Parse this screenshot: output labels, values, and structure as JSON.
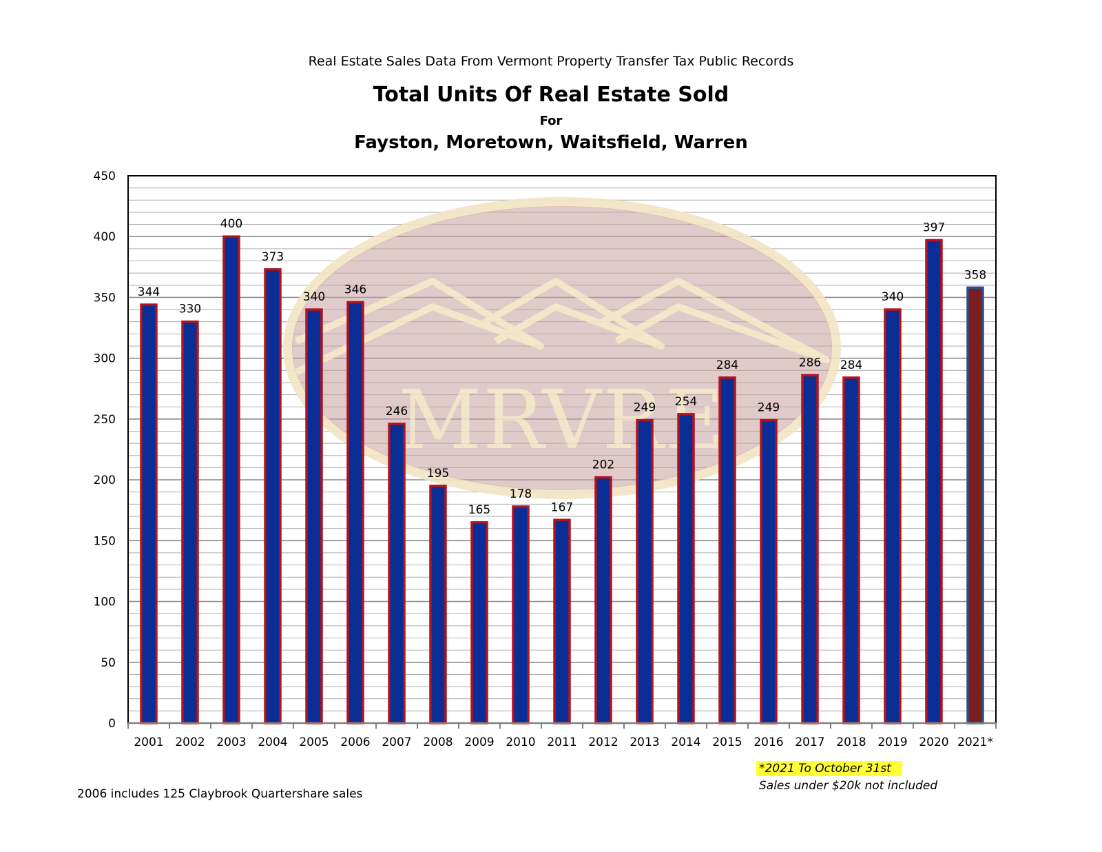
{
  "header": {
    "subtitle": "Real Estate Sales Data From Vermont Property Transfer Tax Public Records",
    "title": "Total Units Of Real Estate Sold",
    "title_for": "For",
    "title_towns": "Fayston, Moretown, Waitsfield, Warren"
  },
  "watermark": {
    "text": "MRVRE"
  },
  "notes": {
    "left": "2006 includes 125 Claybrook Quartershare sales",
    "highlight": "*2021 To October 31st",
    "sales": "Sales under $20k not included"
  },
  "colors": {
    "bar_fill": "#0a2e96",
    "bar_border": "#b0141e",
    "last_bar_fill": "#7a1f1f",
    "last_bar_border": "#2c4f86",
    "gridline": "#a6a6a6",
    "watermark_fill": "#c9a2a2",
    "watermark_glow": "#f2e4c4",
    "highlight": "#ffff33"
  },
  "chart_data": {
    "type": "bar",
    "categories": [
      "2001",
      "2002",
      "2003",
      "2004",
      "2005",
      "2006",
      "2007",
      "2008",
      "2009",
      "2010",
      "2011",
      "2012",
      "2013",
      "2014",
      "2015",
      "2016",
      "2017",
      "2018",
      "2019",
      "2020",
      "2021*"
    ],
    "values": [
      344,
      330,
      400,
      373,
      340,
      346,
      246,
      195,
      165,
      178,
      167,
      202,
      249,
      254,
      284,
      249,
      286,
      284,
      340,
      397,
      358
    ],
    "data_labels": [
      "344",
      "330",
      "400",
      "373",
      "340",
      "346",
      "246",
      "195",
      "165",
      "178",
      "167",
      "202",
      "249",
      "254",
      "284",
      "249",
      "286",
      "284",
      "340",
      "397",
      "358"
    ],
    "ylim": [
      0,
      450
    ],
    "yticks": [
      0,
      50,
      100,
      150,
      200,
      250,
      300,
      350,
      400,
      450
    ],
    "minor_grid_step": 10,
    "grid": true,
    "legend": "none",
    "xlabel": "",
    "ylabel": ""
  }
}
